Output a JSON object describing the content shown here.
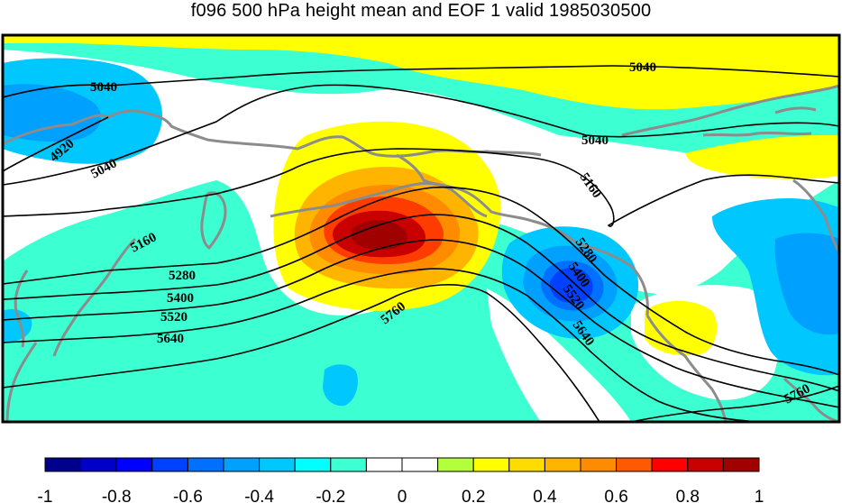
{
  "title": "f096 500 hPa height mean and EOF 1 valid 1985030500",
  "contour_labels": [
    "5040",
    "5040",
    "4920",
    "5040",
    "5040",
    "5160",
    "5160",
    "5280",
    "5400",
    "5520",
    "5640",
    "5760",
    "5280",
    "5400",
    "5520",
    "5640",
    "5760"
  ],
  "colorbar": {
    "colors": [
      "#00008c",
      "#0000c8",
      "#0000ff",
      "#0041ff",
      "#0070ff",
      "#00a0ff",
      "#00c8ff",
      "#00ffff",
      "#3cffd2",
      "#ffffff",
      "#ffffff",
      "#b4ff3c",
      "#ffff00",
      "#ffdc00",
      "#ffb400",
      "#ff8c00",
      "#ff5a00",
      "#ff0000",
      "#c80000",
      "#a00000"
    ],
    "tick_labels": [
      "-1",
      "-0.8",
      "-0.6",
      "-0.4",
      "-0.2",
      "0",
      "0.2",
      "0.4",
      "0.6",
      "0.8",
      "1"
    ]
  },
  "colors": {
    "frame": "#000000",
    "coastline": "#8c8c8c",
    "contour": "#000000"
  }
}
